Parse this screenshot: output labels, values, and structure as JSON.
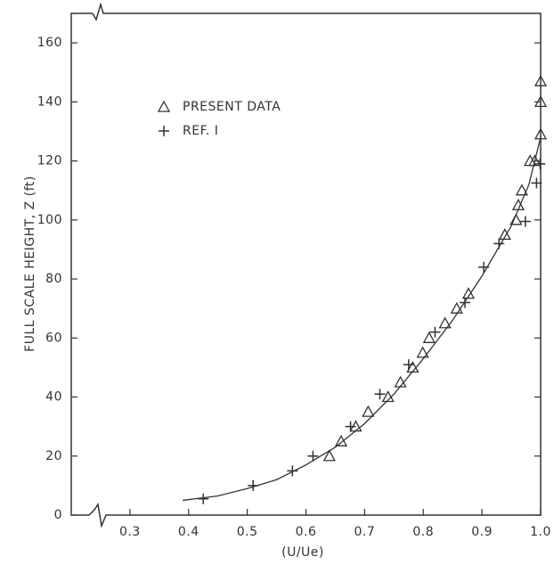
{
  "chart_data": {
    "type": "scatter",
    "x_label": "(U/Ue)",
    "y_label": "FULL SCALE HEIGHT, Z (ft)",
    "xlim": [
      0.2,
      1.0
    ],
    "ylim": [
      0,
      170
    ],
    "xticks": [
      0.3,
      0.4,
      0.5,
      0.6,
      0.7,
      0.8,
      0.9,
      {
        "value": 1,
        "label": "1.0"
      }
    ],
    "yticks": [
      0,
      20,
      40,
      60,
      80,
      100,
      120,
      140,
      160
    ],
    "color": "#333333",
    "series": [
      {
        "name": "PRESENT DATA",
        "marker": "triangle",
        "x": [
          0.64,
          0.66,
          0.685,
          0.706,
          0.74,
          0.761,
          0.782,
          0.799,
          0.81,
          0.837,
          0.857,
          0.877,
          0.939,
          0.958,
          0.962,
          0.968,
          0.982,
          0.99,
          1.0,
          1.0,
          1.0
        ],
        "values": [
          20,
          25,
          30,
          35,
          40,
          45,
          50,
          55,
          60,
          65,
          70,
          75,
          95,
          100,
          105,
          110,
          120,
          120,
          129,
          140,
          147
        ]
      },
      {
        "name": "REF. I",
        "marker": "plus",
        "x": [
          0.425,
          0.51,
          0.577,
          0.612,
          0.676,
          0.726,
          0.775,
          0.82,
          0.871,
          0.903,
          0.929,
          0.974,
          0.993,
          0.999
        ],
        "values": [
          5.5,
          10,
          15,
          20,
          30,
          41,
          51,
          62,
          72,
          84,
          92,
          99.5,
          112.5,
          119
        ]
      }
    ],
    "fit": {
      "x": [
        0.39,
        0.45,
        0.5,
        0.55,
        0.6,
        0.65,
        0.7,
        0.75,
        0.8,
        0.85,
        0.9,
        0.95,
        0.98,
        1.0
      ],
      "values": [
        5,
        6.5,
        9,
        12,
        17,
        23,
        31,
        41,
        53,
        66,
        81,
        98,
        112,
        128
      ]
    }
  }
}
